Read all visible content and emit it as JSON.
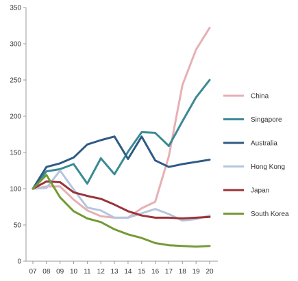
{
  "chart_data": {
    "type": "line",
    "title": "",
    "xlabel": "",
    "ylabel": "",
    "x": [
      "07",
      "08",
      "09",
      "10",
      "11",
      "12",
      "13",
      "14",
      "15",
      "16",
      "17",
      "18",
      "19",
      "20"
    ],
    "ylim": [
      0,
      350
    ],
    "yticks": [
      0,
      50,
      100,
      150,
      200,
      250,
      300,
      350
    ],
    "grid": false,
    "legend": "right",
    "series": [
      {
        "name": "China",
        "color": "#e6b0b4",
        "values": [
          100,
          103,
          103,
          85,
          70,
          62,
          60,
          60,
          73,
          82,
          145,
          243,
          292,
          322
        ]
      },
      {
        "name": "Singapore",
        "color": "#3a8a94",
        "values": [
          100,
          124,
          127,
          134,
          107,
          142,
          120,
          151,
          178,
          177,
          159,
          193,
          226,
          250
        ]
      },
      {
        "name": "Australia",
        "color": "#2f5a84",
        "values": [
          100,
          130,
          135,
          143,
          161,
          167,
          172,
          141,
          172,
          139,
          130,
          134,
          137,
          140
        ]
      },
      {
        "name": "Hong Kong",
        "color": "#b4c6de",
        "values": [
          100,
          101,
          125,
          99,
          74,
          70,
          60,
          60,
          66,
          72,
          65,
          56,
          58,
          63
        ]
      },
      {
        "name": "Japan",
        "color": "#9b3338",
        "values": [
          100,
          110,
          109,
          95,
          90,
          86,
          78,
          69,
          63,
          60,
          60,
          59,
          60,
          61
        ]
      },
      {
        "name": "South Korea",
        "color": "#749a36",
        "values": [
          100,
          119,
          88,
          69,
          59,
          54,
          44,
          37,
          32,
          25,
          22,
          21,
          20,
          21
        ]
      }
    ]
  }
}
